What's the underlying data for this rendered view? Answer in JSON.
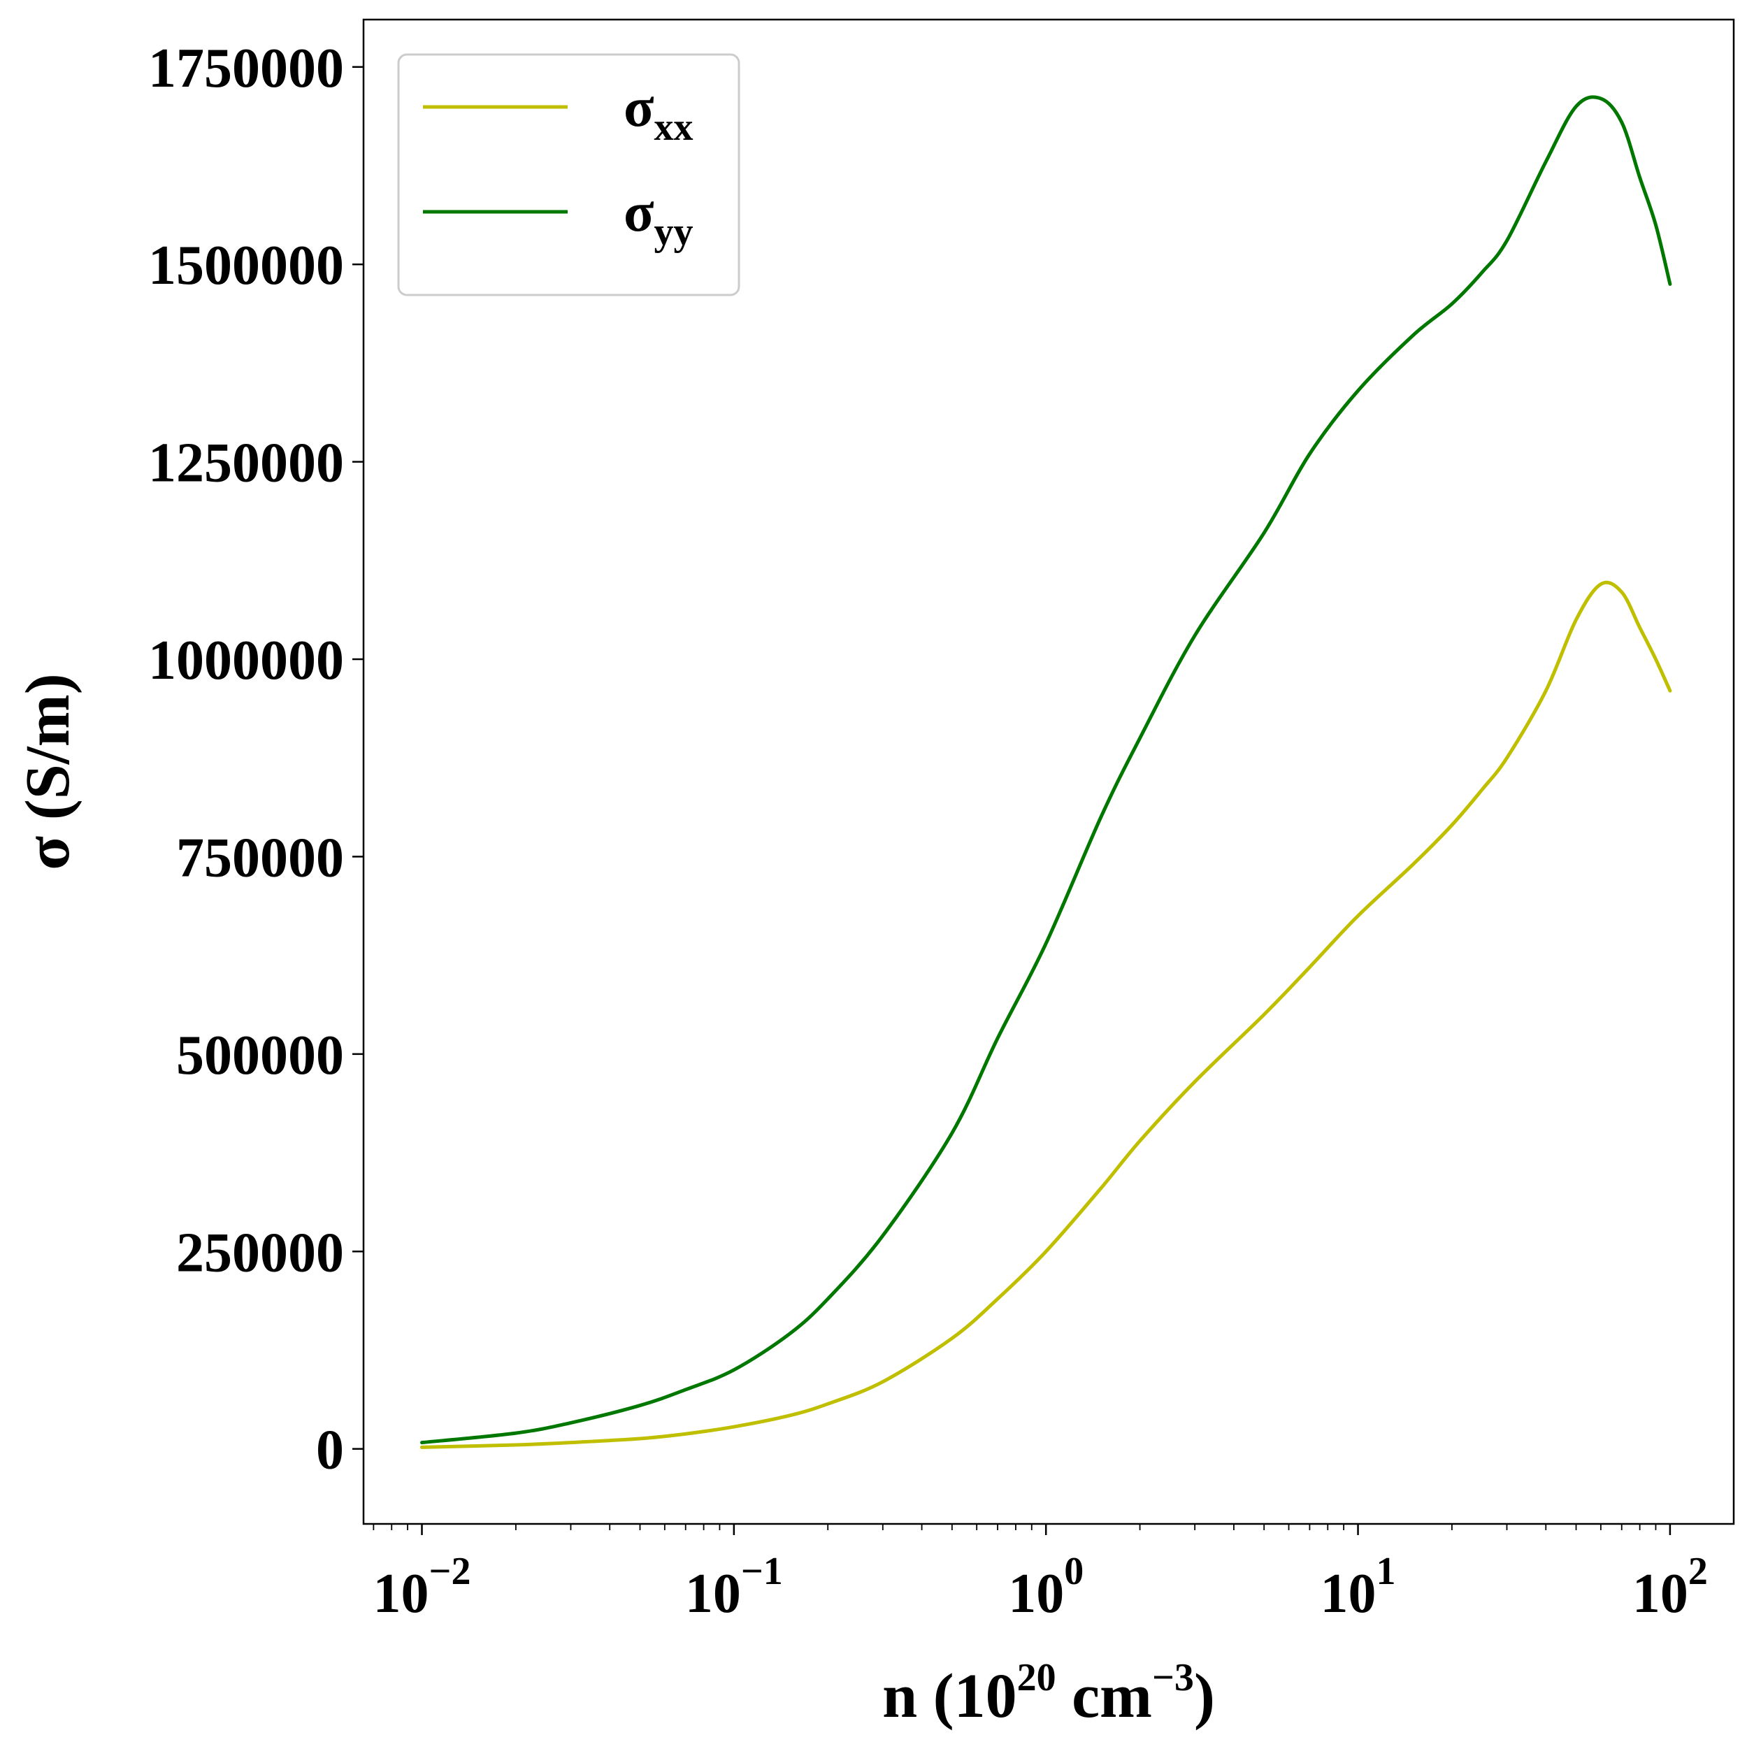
{
  "chart_data": {
    "type": "line",
    "xscale": "log",
    "xlim": [
      0.0065,
      160
    ],
    "ylim": [
      -95000,
      1810000
    ],
    "x_ticks": [
      0.01,
      0.1,
      1,
      10,
      100
    ],
    "x_tick_labels": [
      {
        "base": "10",
        "exp": "−2"
      },
      {
        "base": "10",
        "exp": "−1"
      },
      {
        "base": "10",
        "exp": "0"
      },
      {
        "base": "10",
        "exp": "1"
      },
      {
        "base": "10",
        "exp": "2"
      }
    ],
    "y_ticks": [
      0,
      250000,
      500000,
      750000,
      1000000,
      1250000,
      1500000,
      1750000
    ],
    "y_tick_labels": [
      "0",
      "250000",
      "500000",
      "750000",
      "1000000",
      "1250000",
      "1500000",
      "1750000"
    ],
    "xlabel": {
      "main": "n (10",
      "exp1": "20",
      "mid": " cm",
      "exp2": "−3",
      "tail": ")"
    },
    "ylabel": "σ (S/m)",
    "legend_position": "upper-left",
    "grid": false,
    "series": [
      {
        "name": "σ_xx",
        "legend": {
          "base": "σ",
          "sub": "xx"
        },
        "color": "#bfbf00",
        "points": [
          [
            0.01,
            2000
          ],
          [
            0.02,
            5000
          ],
          [
            0.03,
            8000
          ],
          [
            0.05,
            13000
          ],
          [
            0.07,
            19000
          ],
          [
            0.1,
            28000
          ],
          [
            0.15,
            42000
          ],
          [
            0.2,
            57000
          ],
          [
            0.3,
            85000
          ],
          [
            0.5,
            140000
          ],
          [
            0.7,
            190000
          ],
          [
            1.0,
            250000
          ],
          [
            1.5,
            330000
          ],
          [
            2.0,
            390000
          ],
          [
            3.0,
            465000
          ],
          [
            5.0,
            550000
          ],
          [
            7.0,
            610000
          ],
          [
            10.0,
            675000
          ],
          [
            15.0,
            740000
          ],
          [
            20.0,
            790000
          ],
          [
            25.0,
            835000
          ],
          [
            30.0,
            875000
          ],
          [
            40.0,
            960000
          ],
          [
            50.0,
            1050000
          ],
          [
            60.0,
            1095000
          ],
          [
            70.0,
            1085000
          ],
          [
            80.0,
            1040000
          ],
          [
            90.0,
            1000000
          ],
          [
            100.0,
            960000
          ]
        ]
      },
      {
        "name": "σ_yy",
        "legend": {
          "base": "σ",
          "sub": "yy"
        },
        "color": "#007800",
        "points": [
          [
            0.01,
            8000
          ],
          [
            0.02,
            20000
          ],
          [
            0.03,
            33000
          ],
          [
            0.05,
            55000
          ],
          [
            0.07,
            75000
          ],
          [
            0.1,
            100000
          ],
          [
            0.15,
            145000
          ],
          [
            0.2,
            190000
          ],
          [
            0.3,
            270000
          ],
          [
            0.5,
            400000
          ],
          [
            0.7,
            520000
          ],
          [
            1.0,
            640000
          ],
          [
            1.5,
            800000
          ],
          [
            2.0,
            900000
          ],
          [
            3.0,
            1030000
          ],
          [
            5.0,
            1160000
          ],
          [
            7.0,
            1260000
          ],
          [
            10.0,
            1340000
          ],
          [
            15.0,
            1410000
          ],
          [
            20.0,
            1450000
          ],
          [
            25.0,
            1490000
          ],
          [
            30.0,
            1530000
          ],
          [
            40.0,
            1630000
          ],
          [
            50.0,
            1700000
          ],
          [
            60.0,
            1710000
          ],
          [
            70.0,
            1680000
          ],
          [
            80.0,
            1610000
          ],
          [
            90.0,
            1550000
          ],
          [
            100.0,
            1475000
          ]
        ]
      }
    ]
  }
}
